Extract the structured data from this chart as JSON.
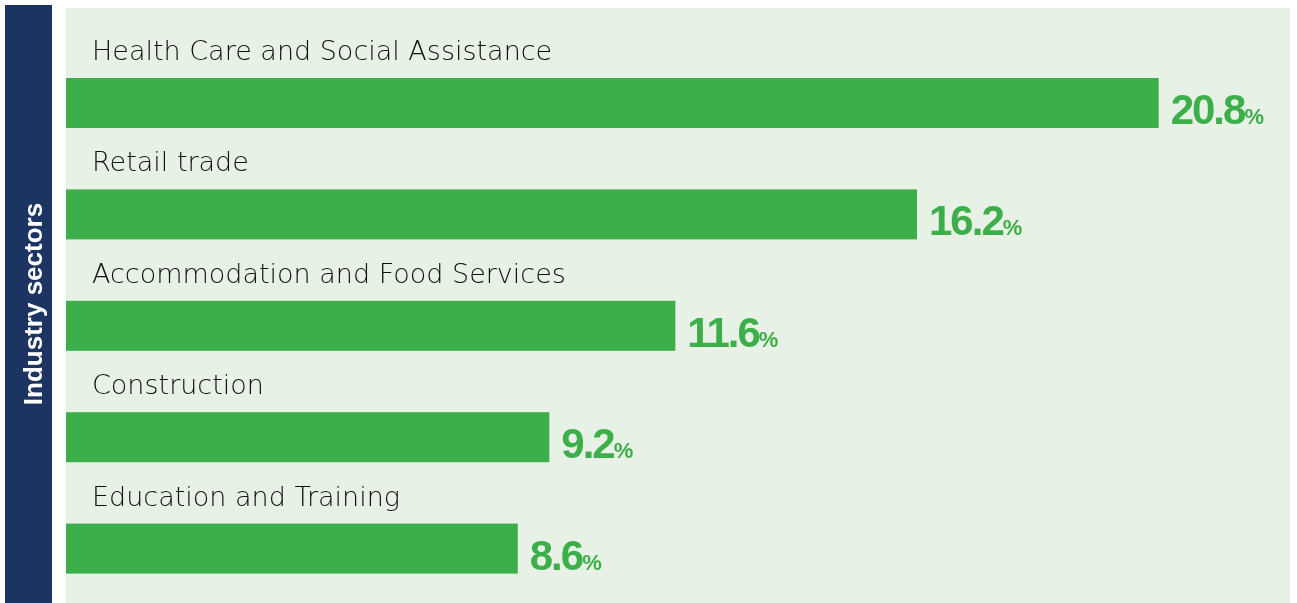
{
  "chart_data": {
    "type": "bar",
    "orientation": "horizontal",
    "ylabel": "Industry sectors",
    "categories": [
      "Health Care and Social Assistance",
      "Retail trade",
      "Accommodation and Food Services",
      "Construction",
      "Education and Training"
    ],
    "values": [
      20.8,
      16.2,
      11.6,
      9.2,
      8.6
    ],
    "value_labels": [
      "20.8%",
      "16.2%",
      "11.6%",
      "9.2%",
      "8.6%"
    ],
    "color": "#3daf4a",
    "xlim": [
      0,
      23.3
    ]
  }
}
